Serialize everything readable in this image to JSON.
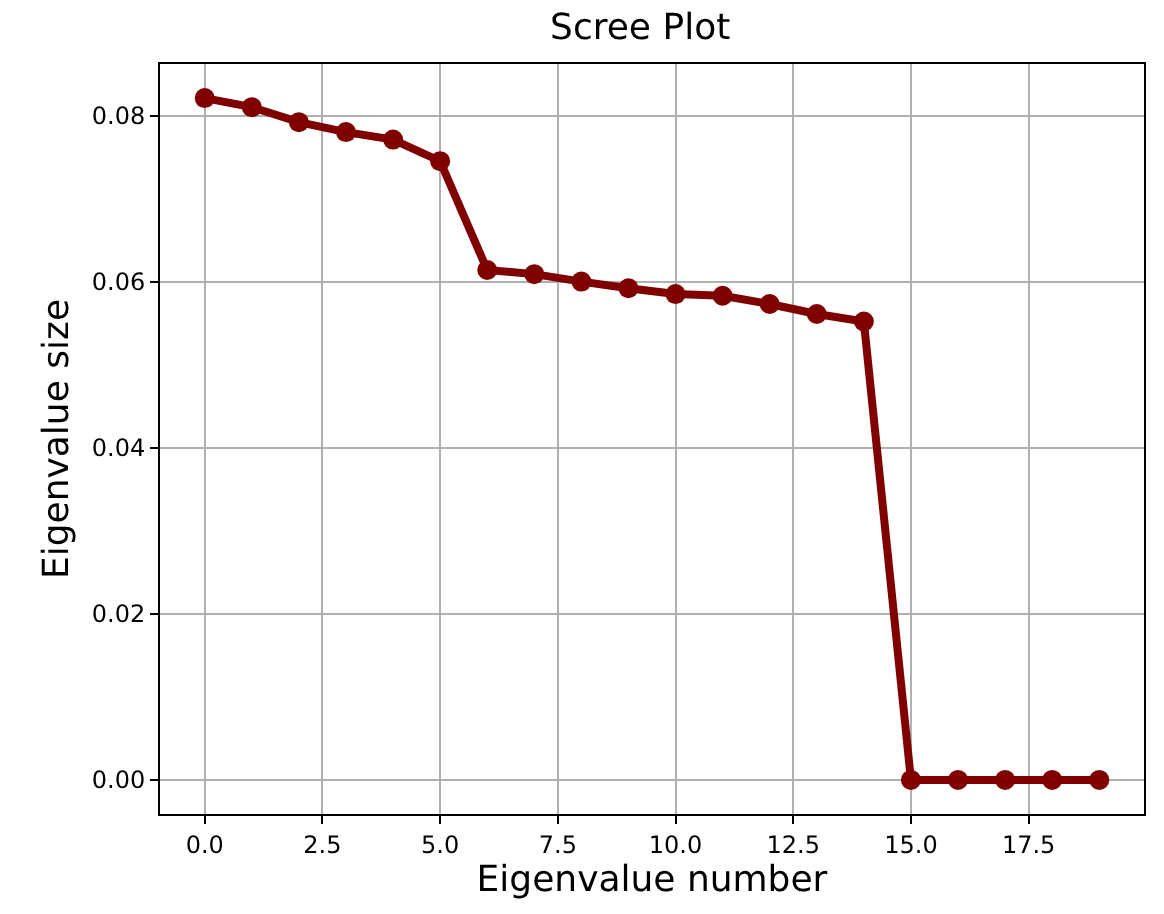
{
  "chart_data": {
    "type": "line",
    "title": "Scree Plot",
    "xlabel": "Eigenvalue number",
    "ylabel": "Eigenvalue size",
    "x": [
      0,
      1,
      2,
      3,
      4,
      5,
      6,
      7,
      8,
      9,
      10,
      11,
      12,
      13,
      14,
      15,
      16,
      17,
      18,
      19
    ],
    "series": [
      {
        "color": "#800000",
        "values": [
          0.0821,
          0.081,
          0.0792,
          0.078,
          0.0771,
          0.0745,
          0.0614,
          0.0609,
          0.06,
          0.0592,
          0.0585,
          0.0583,
          0.0573,
          0.0561,
          0.0552,
          0,
          0,
          0,
          0,
          0
        ]
      }
    ],
    "xlim": [
      -0.95,
      19.95
    ],
    "xticks": [
      {
        "value": 0,
        "label": "0.0"
      },
      {
        "value": 2.5,
        "label": "2.5"
      },
      {
        "value": 5,
        "label": "5.0"
      },
      {
        "value": 7.5,
        "label": "7.5"
      },
      {
        "value": 10,
        "label": "10.0"
      },
      {
        "value": 12.5,
        "label": "12.5"
      },
      {
        "value": 15,
        "label": "15.0"
      },
      {
        "value": 17.5,
        "label": "17.5"
      }
    ],
    "ylim": [
      -0.0041,
      0.0862
    ],
    "yticks": [
      {
        "value": 0,
        "label": "0.00"
      },
      {
        "value": 0.02,
        "label": "0.02"
      },
      {
        "value": 0.04,
        "label": "0.04"
      },
      {
        "value": 0.06,
        "label": "0.06"
      },
      {
        "value": 0.08,
        "label": "0.08"
      }
    ],
    "grid": true,
    "marker": "circle",
    "line_style": "solid"
  }
}
